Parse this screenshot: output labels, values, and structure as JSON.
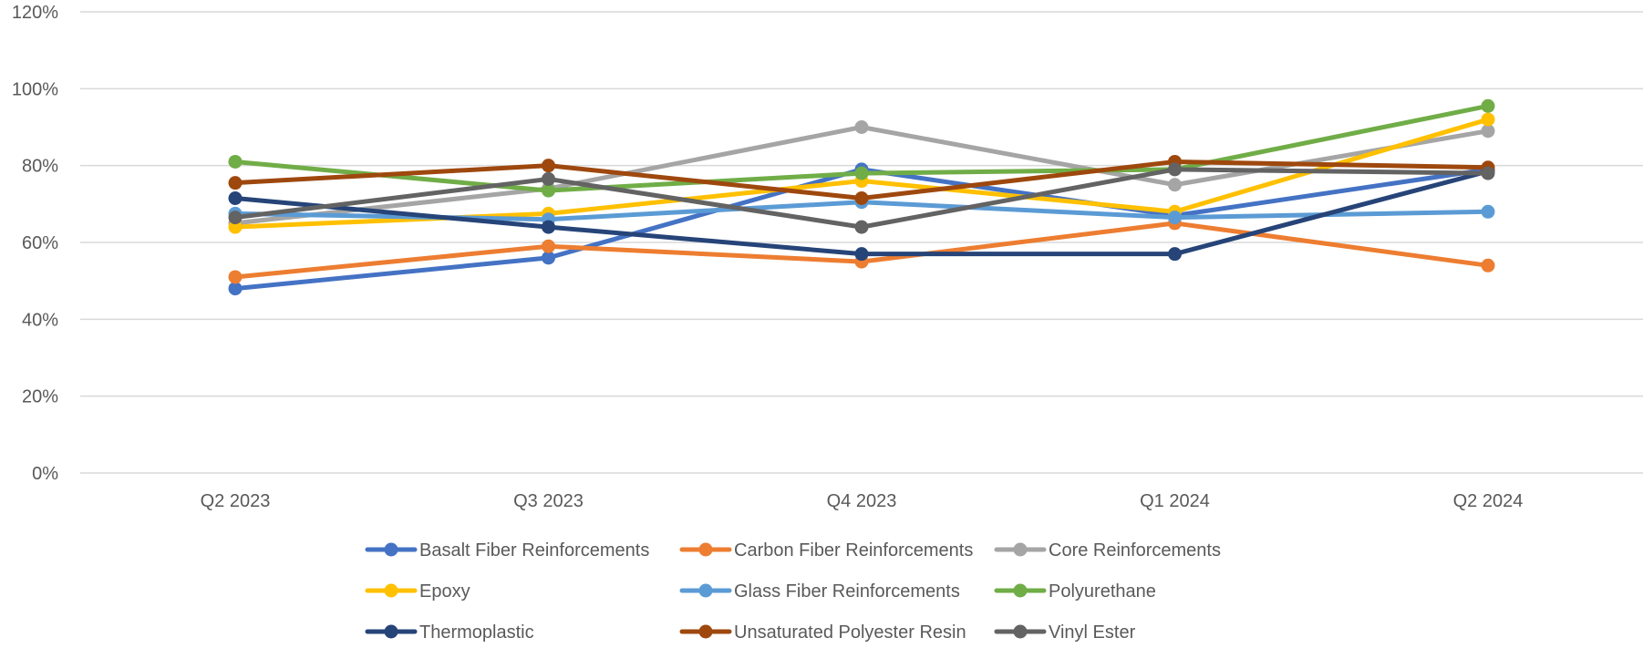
{
  "chart_data": {
    "type": "line",
    "title": "",
    "xlabel": "",
    "ylabel": "",
    "categories": [
      "Q2 2023",
      "Q3 2023",
      "Q4 2023",
      "Q1 2024",
      "Q2 2024"
    ],
    "ylim": [
      0,
      1.2
    ],
    "y_ticks": [
      "0%",
      "20%",
      "40%",
      "60%",
      "80%",
      "100%",
      "120%"
    ],
    "grid": "horizontal",
    "legend_position": "bottom",
    "series": [
      {
        "name": "Basalt Fiber Reinforcements",
        "color": "#4472C4",
        "values": [
          0.48,
          0.56,
          0.79,
          0.67,
          0.79
        ]
      },
      {
        "name": "Carbon Fiber Reinforcements",
        "color": "#ED7D31",
        "values": [
          0.51,
          0.59,
          0.55,
          0.65,
          0.54
        ]
      },
      {
        "name": "Core Reinforcements",
        "color": "#A5A5A5",
        "values": [
          0.65,
          0.74,
          0.9,
          0.75,
          0.89
        ]
      },
      {
        "name": "Epoxy",
        "color": "#FFC000",
        "values": [
          0.64,
          0.675,
          0.76,
          0.68,
          0.92
        ]
      },
      {
        "name": "Glass Fiber Reinforcements",
        "color": "#5B9BD5",
        "values": [
          0.675,
          0.66,
          0.705,
          0.665,
          0.68
        ]
      },
      {
        "name": "Polyurethane",
        "color": "#70AD47",
        "values": [
          0.81,
          0.735,
          0.78,
          0.79,
          0.955
        ]
      },
      {
        "name": "Thermoplastic",
        "color": "#264478",
        "values": [
          0.715,
          0.64,
          0.57,
          0.57,
          0.785
        ]
      },
      {
        "name": "Unsaturated Polyester Resin",
        "color": "#9E480E",
        "values": [
          0.755,
          0.8,
          0.715,
          0.81,
          0.795
        ]
      },
      {
        "name": "Vinyl Ester",
        "color": "#636363",
        "values": [
          0.665,
          0.765,
          0.64,
          0.79,
          0.78
        ]
      }
    ]
  }
}
